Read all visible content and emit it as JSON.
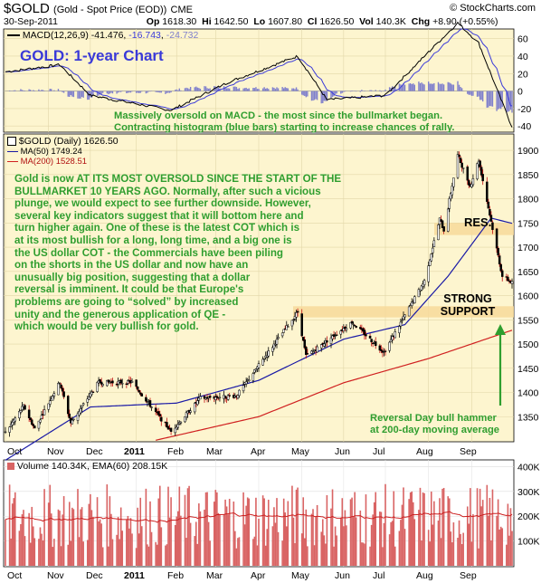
{
  "header": {
    "symbol": "$GOLD",
    "name": "(Gold - Spot Price (EOD))",
    "exchange": "CME",
    "source": "© StockCharts.com",
    "date": "30-Sep-2011",
    "op_label": "Op",
    "op": "1618.30",
    "hi_label": "Hi",
    "hi": "1642.50",
    "lo_label": "Lo",
    "lo": "1607.80",
    "cl_label": "Cl",
    "cl": "1626.50",
    "vol_label": "Vol",
    "vol": "140.3K",
    "chg_label": "Chg",
    "chg": "+8.90 (+0.55%)"
  },
  "title": "GOLD: 1-year Chart",
  "macd": {
    "legend_label": "MACD(12,26,9)",
    "macd_value": "-41.476",
    "signal_value": "-16.743",
    "hist_value": "-24.732",
    "ticks": [
      "60",
      "40",
      "20",
      "0",
      "-20",
      "-40"
    ],
    "note_line1": "Massively oversold on MACD - the most since the bullmarket began.",
    "note_line2": "Contracting histogram (blue bars) starting to increase chances of rally."
  },
  "price_legend": {
    "main": "$GOLD (Daily) 1626.50",
    "ma50": "MA(50) 1749.24",
    "ma200": "MA(200) 1528.51"
  },
  "commentary": "Gold is now AT ITS MOST OVERSOLD SINCE THE START OF THE\nBULLMARKET 10 YEARS AGO. Normally, after such a vicious\nplunge, we would expect to see further downside. However,\nseveral key indicators suggest that it will bottom here and\nturn higher again. One of these is the latest COT which is\nat its most bullish for a long, long time, and a big one is\nthe US dollar COT - the Commercials have been piling\non the shorts in the US dollar and now have an\nunusually big position, suggesting that a dollar\nreversal is imminent. It could be that Europe's\nproblems are going to “solved” by increased\nunity and the generous application of QE -\nwhich would be very bullish for gold.",
  "annotations": {
    "resistance": "RES.",
    "support_line1": "STRONG",
    "support_line2": "SUPPORT",
    "reversal_line1": "Reversal Day bull hammer",
    "reversal_line2": "at 200-day moving average"
  },
  "volume": {
    "legend": "Volume 140.34K, EMA(60) 208.15K",
    "ticks": [
      "400K",
      "300K",
      "200K",
      "100K"
    ]
  },
  "months": [
    "Oct",
    "Nov",
    "Dec",
    "2011",
    "Feb",
    "Mar",
    "Apr",
    "May",
    "Jun",
    "Jul",
    "Aug",
    "Sep"
  ],
  "colors": {
    "panel_bg": "#fdf5cf",
    "macd_line": "#000000",
    "signal_line": "#3b3bd9",
    "histogram": "#8080cc",
    "ma50": "#1a1aa6",
    "ma200": "#d02020",
    "zone": "#f7d99a",
    "annotation_green": "#2f9e2f",
    "volume_bar": "#d96464",
    "ema_line": "#cc2020"
  },
  "chart_data": {
    "type": "candlestick",
    "title": "GOLD: 1-year Chart",
    "x_period": [
      "2010-10-01",
      "2011-09-30"
    ],
    "price_axis": {
      "ticks": [
        1350,
        1400,
        1450,
        1500,
        1550,
        1600,
        1650,
        1700,
        1750,
        1800,
        1850,
        1900
      ],
      "ylim": [
        1300,
        1930
      ]
    },
    "price_keypoints": [
      {
        "date": "2010-10-01",
        "close": 1317
      },
      {
        "date": "2010-10-14",
        "close": 1372
      },
      {
        "date": "2010-10-22",
        "close": 1325
      },
      {
        "date": "2010-11-09",
        "close": 1421
      },
      {
        "date": "2010-11-17",
        "close": 1337
      },
      {
        "date": "2010-12-07",
        "close": 1421
      },
      {
        "date": "2010-12-31",
        "close": 1421
      },
      {
        "date": "2011-01-28",
        "close": 1319
      },
      {
        "date": "2011-02-18",
        "close": 1388
      },
      {
        "date": "2011-03-16",
        "close": 1393
      },
      {
        "date": "2011-04-29",
        "close": 1566
      },
      {
        "date": "2011-05-05",
        "close": 1475
      },
      {
        "date": "2011-06-07",
        "close": 1545
      },
      {
        "date": "2011-06-30",
        "close": 1483
      },
      {
        "date": "2011-07-29",
        "close": 1630
      },
      {
        "date": "2011-08-09",
        "close": 1758
      },
      {
        "date": "2011-08-12",
        "close": 1735
      },
      {
        "date": "2011-08-22",
        "close": 1890
      },
      {
        "date": "2011-08-31",
        "close": 1825
      },
      {
        "date": "2011-09-06",
        "close": 1880
      },
      {
        "date": "2011-09-23",
        "close": 1640
      },
      {
        "date": "2011-09-30",
        "close": 1626.5
      }
    ],
    "ma50_keypoints": [
      {
        "date": "2010-10-01",
        "value": 1260
      },
      {
        "date": "2010-12-01",
        "value": 1370
      },
      {
        "date": "2011-02-01",
        "value": 1378
      },
      {
        "date": "2011-04-01",
        "value": 1425
      },
      {
        "date": "2011-06-01",
        "value": 1510
      },
      {
        "date": "2011-07-15",
        "value": 1540
      },
      {
        "date": "2011-08-15",
        "value": 1640
      },
      {
        "date": "2011-09-15",
        "value": 1760
      },
      {
        "date": "2011-09-30",
        "value": 1749.24
      }
    ],
    "ma200_keypoints": [
      {
        "date": "2011-01-15",
        "value": 1300
      },
      {
        "date": "2011-04-01",
        "value": 1350
      },
      {
        "date": "2011-06-01",
        "value": 1420
      },
      {
        "date": "2011-08-01",
        "value": 1470
      },
      {
        "date": "2011-09-30",
        "value": 1528.51
      }
    ],
    "resistance_zone": [
      1725,
      1750
    ],
    "support_zone": [
      1555,
      1578
    ],
    "macd_axis": {
      "ticks": [
        60,
        40,
        20,
        0,
        -20,
        -40
      ],
      "ylim": [
        -46,
        70
      ]
    },
    "macd": {
      "macd": -41.476,
      "signal": -16.743,
      "histogram": -24.732
    },
    "macd_keypoints": [
      {
        "date": "2010-10-01",
        "macd": 22
      },
      {
        "date": "2010-11-09",
        "macd": 30
      },
      {
        "date": "2010-12-01",
        "macd": -5
      },
      {
        "date": "2011-01-28",
        "macd": -22
      },
      {
        "date": "2011-03-10",
        "macd": 10
      },
      {
        "date": "2011-04-29",
        "macd": 40
      },
      {
        "date": "2011-05-20",
        "macd": -10
      },
      {
        "date": "2011-07-01",
        "macd": -5
      },
      {
        "date": "2011-08-22",
        "macd": 78
      },
      {
        "date": "2011-09-06",
        "macd": 55
      },
      {
        "date": "2011-09-30",
        "macd": -41.476
      }
    ],
    "volume_axis": {
      "ticks": [
        "400K",
        "300K",
        "200K",
        "100K"
      ],
      "ylim": [
        0,
        420000
      ]
    },
    "volume_latest": "140.34K",
    "ema60_latest": "208.15K"
  }
}
